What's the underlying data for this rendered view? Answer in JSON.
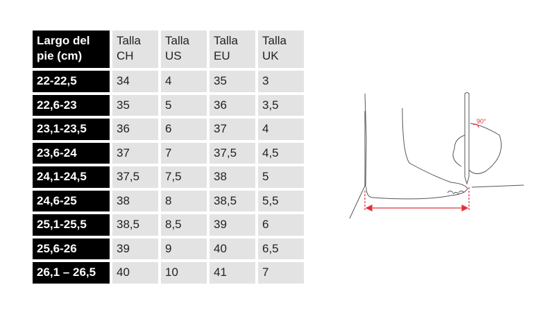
{
  "table": {
    "headers": [
      "Largo del pie (cm)",
      "Talla CH",
      "Talla US",
      "Talla EU",
      "Talla UK"
    ],
    "header_lines": [
      [
        "Largo del",
        "pie (cm)"
      ],
      [
        "Talla",
        "CH"
      ],
      [
        "Talla",
        "US"
      ],
      [
        "Talla",
        "EU"
      ],
      [
        "Talla",
        "UK"
      ]
    ],
    "rows": [
      [
        "22-22,5",
        "34",
        "4",
        "35",
        "3"
      ],
      [
        "22,6-23",
        "35",
        "5",
        "36",
        "3,5"
      ],
      [
        "23,1-23,5",
        "36",
        "6",
        "37",
        "4"
      ],
      [
        "23,6-24",
        "37",
        "7",
        "37,5",
        "4,5"
      ],
      [
        "24,1-24,5",
        "37,5",
        "7,5",
        "38",
        "5"
      ],
      [
        "24,6-25",
        "38",
        "8",
        "38,5",
        "5,5"
      ],
      [
        "25,1-25,5",
        "38,5",
        "8,5",
        "39",
        "6"
      ],
      [
        "25,6-26",
        "39",
        "9",
        "40",
        "6,5"
      ],
      [
        "26,1 – 26,5",
        "40",
        "10",
        "41",
        "7"
      ]
    ]
  },
  "illustration": {
    "angle_label": "90°",
    "accent": "#e0303a"
  }
}
